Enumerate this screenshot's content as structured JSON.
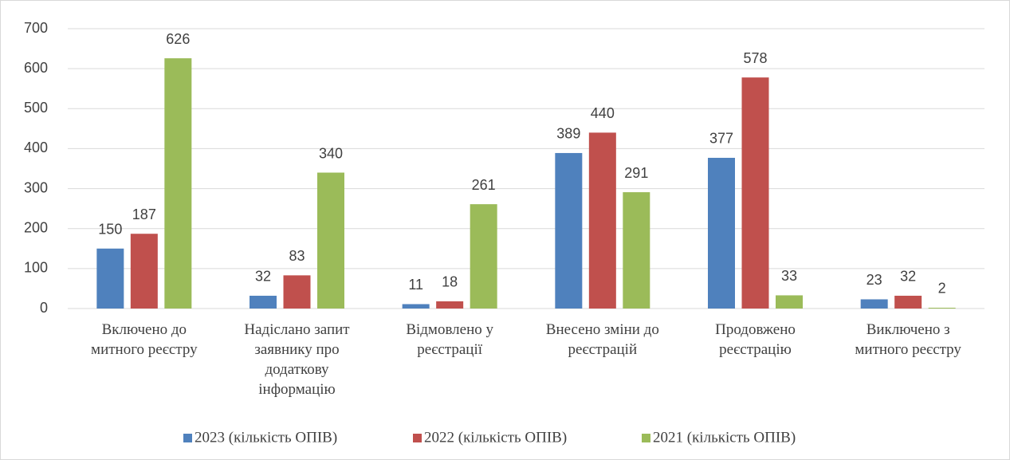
{
  "chart_data": {
    "type": "bar",
    "categories": [
      "Включено до\nмитного реєстру",
      "Надіслано запит\nзаявнику про\nдодаткову\nінформацію",
      "Відмовлено у\nреєстрації",
      "Внесено зміни до\nреєстрацій",
      "Продовжено\nреєстрацію",
      "Виключено з\nмитного реєстру"
    ],
    "series": [
      {
        "name": "2023 (кількість ОПІВ)",
        "color": "#4f81bd",
        "values": [
          150,
          32,
          11,
          389,
          377,
          23
        ]
      },
      {
        "name": "2022 (кількість ОПІВ)",
        "color": "#c0504d",
        "values": [
          187,
          83,
          18,
          440,
          578,
          32
        ]
      },
      {
        "name": "2021 (кількість ОПІВ)",
        "color": "#9bbb59",
        "values": [
          626,
          340,
          261,
          291,
          33,
          2
        ]
      }
    ],
    "ylim": [
      0,
      700
    ],
    "yticks": [
      0,
      100,
      200,
      300,
      400,
      500,
      600,
      700
    ],
    "grid": true,
    "legend": "bottom"
  }
}
